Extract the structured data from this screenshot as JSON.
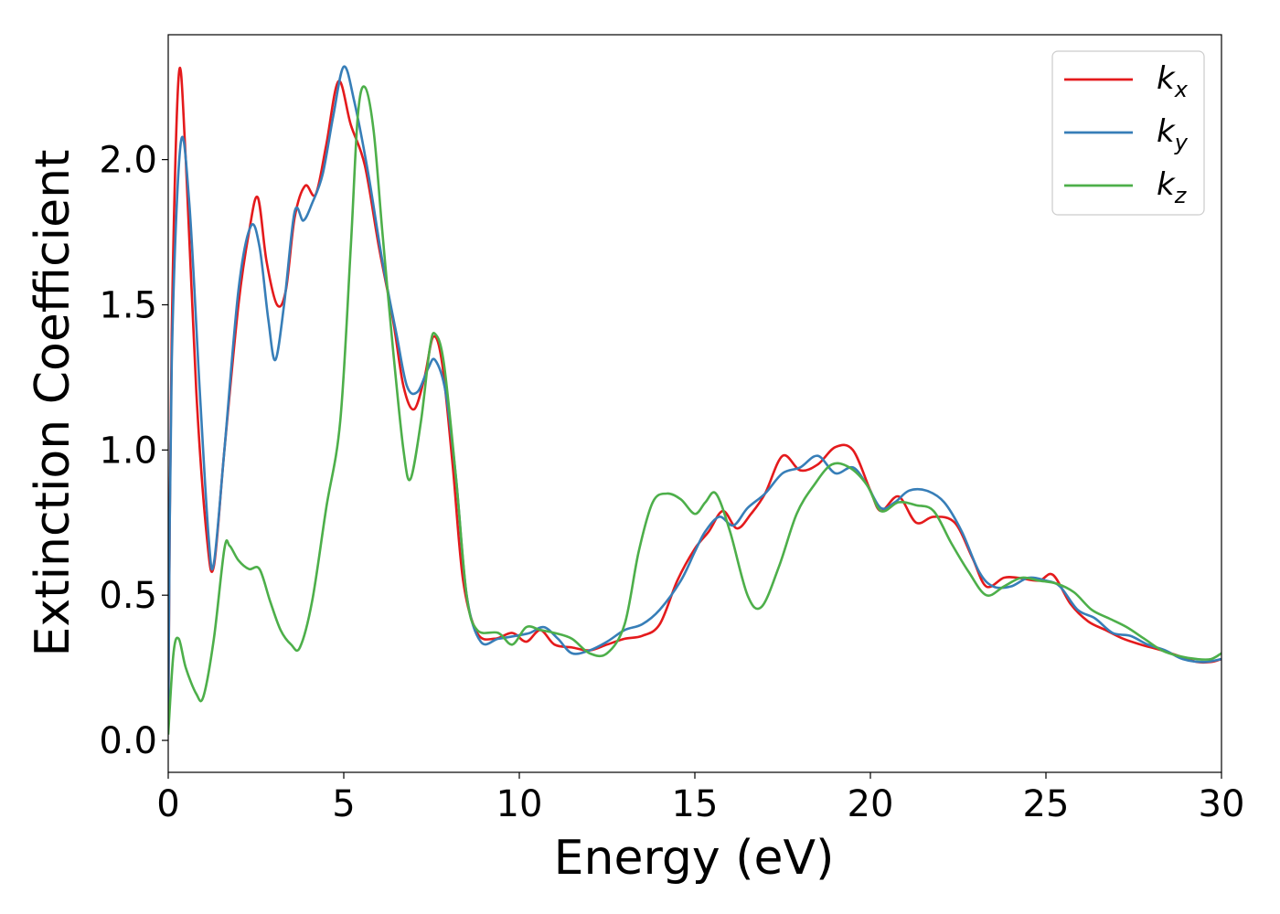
{
  "chart_data": {
    "type": "line",
    "xlabel": "Energy (eV)",
    "ylabel": "Extinction Coefficient",
    "xlim": [
      0,
      30
    ],
    "ylim": [
      -0.11,
      2.43
    ],
    "x_ticks": [
      0,
      5,
      10,
      15,
      20,
      25,
      30
    ],
    "y_ticks": [
      "0.0",
      "0.5",
      "1.0",
      "1.5",
      "2.0"
    ],
    "grid": false,
    "legend_position": "top-right",
    "series": [
      {
        "name": "k_x",
        "label_main": "k",
        "label_sub": "x",
        "color": "#e41a1c",
        "points": [
          [
            0,
            0.05
          ],
          [
            0.1,
            1.4
          ],
          [
            0.3,
            2.29
          ],
          [
            0.5,
            2.0
          ],
          [
            0.8,
            1.2
          ],
          [
            1.1,
            0.7
          ],
          [
            1.3,
            0.6
          ],
          [
            1.6,
            1.0
          ],
          [
            2.0,
            1.5
          ],
          [
            2.3,
            1.75
          ],
          [
            2.55,
            1.87
          ],
          [
            2.8,
            1.65
          ],
          [
            3.1,
            1.5
          ],
          [
            3.35,
            1.55
          ],
          [
            3.6,
            1.8
          ],
          [
            3.9,
            1.91
          ],
          [
            4.2,
            1.88
          ],
          [
            4.5,
            2.05
          ],
          [
            4.85,
            2.27
          ],
          [
            5.2,
            2.12
          ],
          [
            5.6,
            1.98
          ],
          [
            6.0,
            1.7
          ],
          [
            6.4,
            1.45
          ],
          [
            6.7,
            1.22
          ],
          [
            7.0,
            1.14
          ],
          [
            7.3,
            1.25
          ],
          [
            7.55,
            1.39
          ],
          [
            7.8,
            1.3
          ],
          [
            8.1,
            0.95
          ],
          [
            8.4,
            0.55
          ],
          [
            8.8,
            0.37
          ],
          [
            9.3,
            0.35
          ],
          [
            9.8,
            0.37
          ],
          [
            10.2,
            0.34
          ],
          [
            10.6,
            0.38
          ],
          [
            11.0,
            0.33
          ],
          [
            11.5,
            0.32
          ],
          [
            12.0,
            0.31
          ],
          [
            12.5,
            0.33
          ],
          [
            13.0,
            0.35
          ],
          [
            13.5,
            0.36
          ],
          [
            14.0,
            0.4
          ],
          [
            14.5,
            0.55
          ],
          [
            15.0,
            0.66
          ],
          [
            15.4,
            0.72
          ],
          [
            15.8,
            0.79
          ],
          [
            16.2,
            0.73
          ],
          [
            16.6,
            0.78
          ],
          [
            17.0,
            0.85
          ],
          [
            17.5,
            0.98
          ],
          [
            18.0,
            0.93
          ],
          [
            18.5,
            0.95
          ],
          [
            19.0,
            1.01
          ],
          [
            19.5,
            1.0
          ],
          [
            20.0,
            0.86
          ],
          [
            20.3,
            0.79
          ],
          [
            20.8,
            0.84
          ],
          [
            21.3,
            0.75
          ],
          [
            21.8,
            0.77
          ],
          [
            22.4,
            0.75
          ],
          [
            22.9,
            0.63
          ],
          [
            23.3,
            0.53
          ],
          [
            23.8,
            0.56
          ],
          [
            24.2,
            0.56
          ],
          [
            24.8,
            0.55
          ],
          [
            25.2,
            0.57
          ],
          [
            25.7,
            0.47
          ],
          [
            26.2,
            0.41
          ],
          [
            26.7,
            0.38
          ],
          [
            27.2,
            0.35
          ],
          [
            27.7,
            0.33
          ],
          [
            28.3,
            0.31
          ],
          [
            28.8,
            0.29
          ],
          [
            29.3,
            0.27
          ],
          [
            29.7,
            0.27
          ],
          [
            30,
            0.28
          ]
        ]
      },
      {
        "name": "k_y",
        "label_main": "k",
        "label_sub": "y",
        "color": "#377eb8",
        "points": [
          [
            0,
            0.05
          ],
          [
            0.1,
            1.3
          ],
          [
            0.35,
            2.05
          ],
          [
            0.6,
            1.85
          ],
          [
            0.9,
            1.2
          ],
          [
            1.15,
            0.7
          ],
          [
            1.3,
            0.61
          ],
          [
            1.6,
            1.0
          ],
          [
            2.0,
            1.55
          ],
          [
            2.35,
            1.77
          ],
          [
            2.6,
            1.7
          ],
          [
            2.85,
            1.45
          ],
          [
            3.05,
            1.31
          ],
          [
            3.3,
            1.5
          ],
          [
            3.6,
            1.82
          ],
          [
            3.85,
            1.79
          ],
          [
            4.1,
            1.85
          ],
          [
            4.4,
            1.95
          ],
          [
            4.7,
            2.15
          ],
          [
            5.0,
            2.32
          ],
          [
            5.3,
            2.2
          ],
          [
            5.7,
            1.95
          ],
          [
            6.1,
            1.65
          ],
          [
            6.5,
            1.4
          ],
          [
            6.8,
            1.22
          ],
          [
            7.1,
            1.2
          ],
          [
            7.4,
            1.28
          ],
          [
            7.6,
            1.31
          ],
          [
            7.9,
            1.2
          ],
          [
            8.2,
            0.9
          ],
          [
            8.5,
            0.5
          ],
          [
            8.9,
            0.34
          ],
          [
            9.4,
            0.35
          ],
          [
            9.9,
            0.36
          ],
          [
            10.3,
            0.37
          ],
          [
            10.7,
            0.39
          ],
          [
            11.1,
            0.35
          ],
          [
            11.5,
            0.3
          ],
          [
            12.0,
            0.31
          ],
          [
            12.5,
            0.34
          ],
          [
            13.0,
            0.38
          ],
          [
            13.5,
            0.4
          ],
          [
            14.0,
            0.45
          ],
          [
            14.6,
            0.55
          ],
          [
            15.0,
            0.65
          ],
          [
            15.3,
            0.72
          ],
          [
            15.7,
            0.77
          ],
          [
            16.1,
            0.74
          ],
          [
            16.5,
            0.8
          ],
          [
            17.0,
            0.85
          ],
          [
            17.5,
            0.92
          ],
          [
            18.0,
            0.94
          ],
          [
            18.5,
            0.98
          ],
          [
            19.0,
            0.92
          ],
          [
            19.5,
            0.94
          ],
          [
            19.9,
            0.88
          ],
          [
            20.3,
            0.8
          ],
          [
            20.7,
            0.82
          ],
          [
            21.1,
            0.86
          ],
          [
            21.6,
            0.86
          ],
          [
            22.1,
            0.82
          ],
          [
            22.6,
            0.72
          ],
          [
            23.1,
            0.58
          ],
          [
            23.5,
            0.53
          ],
          [
            24.0,
            0.53
          ],
          [
            24.5,
            0.56
          ],
          [
            25.0,
            0.55
          ],
          [
            25.4,
            0.53
          ],
          [
            25.9,
            0.45
          ],
          [
            26.4,
            0.42
          ],
          [
            26.9,
            0.37
          ],
          [
            27.4,
            0.36
          ],
          [
            27.9,
            0.33
          ],
          [
            28.4,
            0.31
          ],
          [
            28.9,
            0.28
          ],
          [
            29.5,
            0.27
          ],
          [
            30,
            0.28
          ]
        ]
      },
      {
        "name": "k_z",
        "label_main": "k",
        "label_sub": "z",
        "color": "#4daf4a",
        "points": [
          [
            0,
            0.02
          ],
          [
            0.15,
            0.3
          ],
          [
            0.3,
            0.35
          ],
          [
            0.5,
            0.25
          ],
          [
            0.8,
            0.16
          ],
          [
            1.0,
            0.15
          ],
          [
            1.3,
            0.35
          ],
          [
            1.6,
            0.66
          ],
          [
            1.75,
            0.67
          ],
          [
            2.0,
            0.62
          ],
          [
            2.3,
            0.59
          ],
          [
            2.6,
            0.59
          ],
          [
            2.9,
            0.48
          ],
          [
            3.2,
            0.38
          ],
          [
            3.5,
            0.33
          ],
          [
            3.75,
            0.32
          ],
          [
            4.1,
            0.48
          ],
          [
            4.5,
            0.8
          ],
          [
            4.9,
            1.1
          ],
          [
            5.2,
            1.7
          ],
          [
            5.4,
            2.15
          ],
          [
            5.6,
            2.25
          ],
          [
            5.85,
            2.1
          ],
          [
            6.1,
            1.75
          ],
          [
            6.4,
            1.35
          ],
          [
            6.7,
            1.0
          ],
          [
            6.9,
            0.9
          ],
          [
            7.2,
            1.1
          ],
          [
            7.45,
            1.35
          ],
          [
            7.6,
            1.4
          ],
          [
            7.85,
            1.3
          ],
          [
            8.2,
            0.9
          ],
          [
            8.5,
            0.5
          ],
          [
            8.8,
            0.38
          ],
          [
            9.4,
            0.37
          ],
          [
            9.8,
            0.33
          ],
          [
            10.2,
            0.39
          ],
          [
            10.6,
            0.38
          ],
          [
            11.0,
            0.37
          ],
          [
            11.5,
            0.35
          ],
          [
            12.0,
            0.3
          ],
          [
            12.5,
            0.3
          ],
          [
            13.0,
            0.4
          ],
          [
            13.4,
            0.65
          ],
          [
            13.8,
            0.82
          ],
          [
            14.2,
            0.85
          ],
          [
            14.6,
            0.83
          ],
          [
            15.0,
            0.78
          ],
          [
            15.3,
            0.82
          ],
          [
            15.6,
            0.85
          ],
          [
            16.0,
            0.72
          ],
          [
            16.5,
            0.5
          ],
          [
            16.9,
            0.46
          ],
          [
            17.4,
            0.6
          ],
          [
            17.9,
            0.78
          ],
          [
            18.4,
            0.88
          ],
          [
            18.9,
            0.95
          ],
          [
            19.4,
            0.94
          ],
          [
            19.9,
            0.88
          ],
          [
            20.3,
            0.79
          ],
          [
            20.8,
            0.82
          ],
          [
            21.3,
            0.81
          ],
          [
            21.8,
            0.79
          ],
          [
            22.3,
            0.68
          ],
          [
            22.8,
            0.58
          ],
          [
            23.3,
            0.5
          ],
          [
            23.8,
            0.53
          ],
          [
            24.3,
            0.56
          ],
          [
            24.8,
            0.55
          ],
          [
            25.3,
            0.54
          ],
          [
            25.8,
            0.51
          ],
          [
            26.3,
            0.45
          ],
          [
            26.8,
            0.42
          ],
          [
            27.3,
            0.39
          ],
          [
            27.8,
            0.35
          ],
          [
            28.3,
            0.31
          ],
          [
            28.8,
            0.29
          ],
          [
            29.3,
            0.28
          ],
          [
            29.7,
            0.28
          ],
          [
            30,
            0.3
          ]
        ]
      }
    ]
  }
}
